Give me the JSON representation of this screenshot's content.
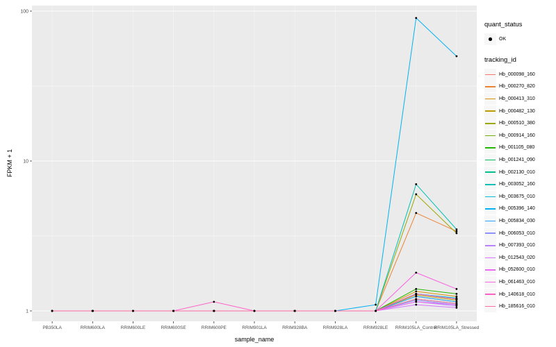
{
  "chart_data": {
    "type": "line",
    "title": "",
    "xlabel": "sample_name",
    "ylabel": "FPKM + 1",
    "y_scale": "log10",
    "ylim": [
      1,
      100
    ],
    "grid": true,
    "legend_position": "right",
    "y_ticks": [
      1,
      10,
      100
    ],
    "y_tick_labels": [
      "1",
      "10",
      "100"
    ],
    "categories": [
      "PB350LA",
      "RRIM600LA",
      "RRIM600LE",
      "RRIM600SE",
      "RRIM600PE",
      "RRIM901LA",
      "RRIM928BA",
      "RRIM928LA",
      "RRIM928LE",
      "RRIM105LA_Control",
      "RRIM105LA_Stressed"
    ],
    "series": [
      {
        "name": "Hb_000098_160",
        "color": "#F8766D",
        "values": [
          1,
          1,
          1,
          1,
          1,
          1,
          1,
          1,
          1,
          1.3,
          1.2
        ]
      },
      {
        "name": "Hb_000270_820",
        "color": "#EB8335",
        "values": [
          1,
          1,
          1,
          1,
          1,
          1,
          1,
          1,
          1,
          4.5,
          3.4
        ]
      },
      {
        "name": "Hb_000413_310",
        "color": "#D89000",
        "values": [
          1,
          1,
          1,
          1,
          1,
          1,
          1,
          1,
          1,
          1.35,
          1.25
        ]
      },
      {
        "name": "Hb_000482_130",
        "color": "#BE9C00",
        "values": [
          1,
          1,
          1,
          1,
          1,
          1,
          1,
          1,
          1,
          1.28,
          1.18
        ]
      },
      {
        "name": "Hb_000510_380",
        "color": "#9CA700",
        "values": [
          1,
          1,
          1,
          1,
          1,
          1,
          1,
          1,
          1,
          6.0,
          3.3
        ]
      },
      {
        "name": "Hb_000914_160",
        "color": "#6FB000",
        "values": [
          1,
          1,
          1,
          1,
          1,
          1,
          1,
          1,
          1,
          1.25,
          1.15
        ]
      },
      {
        "name": "Hb_001105_080",
        "color": "#24B700",
        "values": [
          1,
          1,
          1,
          1,
          1,
          1,
          1,
          1,
          1,
          1.4,
          1.3
        ]
      },
      {
        "name": "Hb_001241_090",
        "color": "#00BC59",
        "values": [
          1,
          1,
          1,
          1,
          1,
          1,
          1,
          1,
          1,
          1.2,
          1.12
        ]
      },
      {
        "name": "Hb_002130_010",
        "color": "#00C08D",
        "values": [
          1,
          1,
          1,
          1,
          1,
          1,
          1,
          1,
          1,
          1.3,
          1.2
        ]
      },
      {
        "name": "Hb_003052_160",
        "color": "#00C0B4",
        "values": [
          1,
          1,
          1,
          1,
          1,
          1,
          1,
          1,
          1,
          7.0,
          3.5
        ]
      },
      {
        "name": "Hb_003675_010",
        "color": "#00BBD6",
        "values": [
          1,
          1,
          1,
          1,
          1,
          1,
          1,
          1,
          1,
          1.3,
          1.22
        ]
      },
      {
        "name": "Hb_005396_140",
        "color": "#00B2F3",
        "values": [
          1,
          1,
          1,
          1,
          1,
          1,
          1,
          1,
          1.1,
          90,
          50
        ]
      },
      {
        "name": "Hb_005834_030",
        "color": "#29A3FF",
        "values": [
          1,
          1,
          1,
          1,
          1,
          1,
          1,
          1,
          1,
          1.25,
          1.15
        ]
      },
      {
        "name": "Hb_006053_010",
        "color": "#8B93FF",
        "values": [
          1,
          1,
          1,
          1,
          1,
          1,
          1,
          1,
          1,
          1.18,
          1.1
        ]
      },
      {
        "name": "Hb_007393_010",
        "color": "#B983FF",
        "values": [
          1,
          1,
          1,
          1,
          1,
          1,
          1,
          1,
          1,
          1.15,
          1.08
        ]
      },
      {
        "name": "Hb_012543_020",
        "color": "#D575FE",
        "values": [
          1,
          1,
          1,
          1,
          1,
          1,
          1,
          1,
          1,
          1.1,
          1.05
        ]
      },
      {
        "name": "Hb_052600_010",
        "color": "#EA6AF1",
        "values": [
          1,
          1,
          1,
          1,
          1,
          1,
          1,
          1,
          1,
          1.15,
          1.1
        ]
      },
      {
        "name": "Hb_061463_010",
        "color": "#F863DF",
        "values": [
          1,
          1,
          1,
          1,
          1,
          1,
          1,
          1,
          1,
          1.8,
          1.4
        ]
      },
      {
        "name": "Hb_140618_010",
        "color": "#FF62C6",
        "values": [
          1,
          1,
          1,
          1,
          1.15,
          1,
          1,
          1,
          1,
          1.3,
          1.2
        ]
      },
      {
        "name": "Hb_185616_010",
        "color": "#FF6BA6",
        "values": [
          1,
          1,
          1,
          1,
          1,
          1,
          1,
          1,
          1,
          1.2,
          1.12
        ]
      }
    ]
  },
  "legend": {
    "quant_status_title": "quant_status",
    "quant_status_items": [
      {
        "label": "OK",
        "symbol": "point",
        "color": "#000000"
      }
    ],
    "tracking_id_title": "tracking_id"
  },
  "panel": {
    "background": "#EBEBEB",
    "grid_color": "#FFFFFF",
    "point_color": "#000000",
    "tick_label_color": "#4D4D4D"
  }
}
